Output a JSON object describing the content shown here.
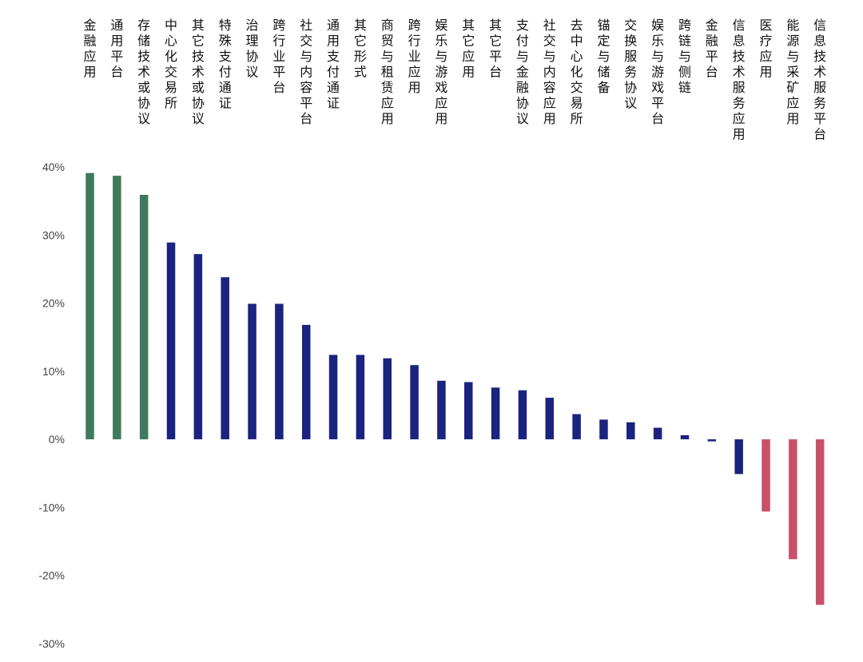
{
  "chart_data": {
    "type": "bar",
    "title": "",
    "xlabel": "",
    "ylabel": "",
    "ylim": [
      -30,
      40
    ],
    "yticks": [
      40,
      30,
      20,
      10,
      0,
      -10,
      -20,
      -30
    ],
    "ytick_labels": [
      "40%",
      "30%",
      "20%",
      "10%",
      "0%",
      "-10%",
      "-20%",
      "-30%"
    ],
    "categories": [
      "金融应用",
      "通用平台",
      "存储技术或协议",
      "中心化交易所",
      "其它技术或协议",
      "特殊支付通证",
      "治理协议",
      "跨行业平台",
      "社交与内容平台",
      "通用支付通证",
      "其它形式",
      "商贸与租赁应用",
      "跨行业应用",
      "娱乐与游戏应用",
      "其它应用",
      "其它平台",
      "支付与金融协议",
      "社交与内容应用",
      "去中心化交易所",
      "锚定与储备",
      "交换服务协议",
      "娱乐与游戏平台",
      "跨链与侧链",
      "金融平台",
      "信息技术服务应用",
      "医疗应用",
      "能源与采矿应用",
      "信息技术服务平台"
    ],
    "values": [
      39.1,
      38.7,
      35.9,
      28.9,
      27.2,
      23.8,
      19.9,
      19.9,
      16.8,
      12.4,
      12.4,
      11.9,
      10.9,
      8.6,
      8.4,
      7.6,
      7.2,
      6.1,
      3.7,
      2.9,
      2.5,
      1.7,
      0.6,
      -0.3,
      -5.1,
      -10.6,
      -17.6,
      -24.3
    ],
    "colors": {
      "top": "#3f7a5d",
      "middle": "#1a237e",
      "bottom": "#c8506a"
    },
    "color_groups": [
      "top",
      "top",
      "top",
      "middle",
      "middle",
      "middle",
      "middle",
      "middle",
      "middle",
      "middle",
      "middle",
      "middle",
      "middle",
      "middle",
      "middle",
      "middle",
      "middle",
      "middle",
      "middle",
      "middle",
      "middle",
      "middle",
      "middle",
      "middle",
      "middle",
      "bottom",
      "bottom",
      "bottom"
    ],
    "grid": false,
    "legend": "none"
  }
}
